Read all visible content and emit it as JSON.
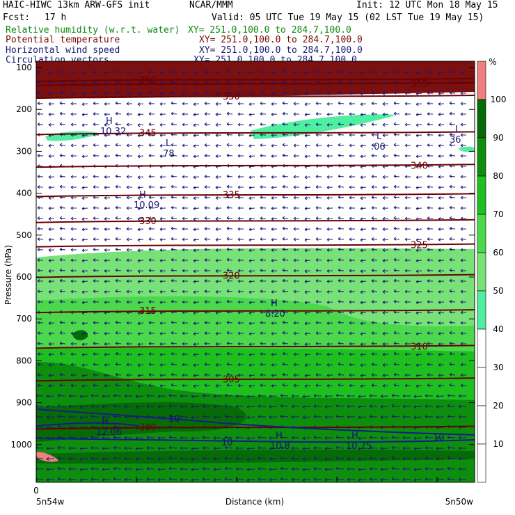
{
  "header": {
    "model": "HAIC-HIWC 13km ARW-GFS init",
    "org": "NCAR/MMM",
    "init": "Init: 12 UTC Mon 18 May 15",
    "fcst_label": "Fcst:",
    "fcst_value": "17 h",
    "valid": "Valid: 05 UTC Tue 19 May 15 (02 LST Tue 19 May 15)"
  },
  "fields": [
    {
      "name": "Relative humidity (w.r.t. water)",
      "xy": "XY= 251.0,100.0 to 284.7,100.0",
      "color": "#0f8a0f"
    },
    {
      "name": "Potential temperature",
      "xy": "XY= 251.0,100.0 to 284.7,100.0",
      "color": "#7a0a0a"
    },
    {
      "name": "Horizontal wind speed",
      "xy": "XY= 251.0,100.0 to 284.7,100.0",
      "color": "#1a1a78"
    },
    {
      "name": "Circulation vectors",
      "xy": "XY= 251.0,100.0 to 284.7,100.0",
      "color": "#1a1a78"
    }
  ],
  "chart_data": {
    "type": "heatmap",
    "ylabel": "Pressure (hPa)",
    "xlabel": "Distance (km)",
    "y_ticks": [
      100,
      200,
      300,
      400,
      500,
      600,
      700,
      800,
      900,
      1000
    ],
    "y_range": [
      85,
      1090
    ],
    "x_ticks_start": "0",
    "x_left_label": "5n54w",
    "x_right_label": "5n50w",
    "colorbar": {
      "unit": "%",
      "levels": [
        10,
        20,
        30,
        40,
        50,
        60,
        70,
        80,
        90,
        100
      ],
      "colors": [
        "#ffffff",
        "#ffffff",
        "#ffffff",
        "#ffffff",
        "#ffffff",
        "#50eea0",
        "#78e278",
        "#4cd84c",
        "#1fbf1f",
        "#0d8f0d",
        "#066b06",
        "#f08080"
      ]
    },
    "theta_contours": [
      {
        "label": "300",
        "p": 958
      },
      {
        "label": "305",
        "p": 843
      },
      {
        "label": "310",
        "p": 765
      },
      {
        "label": "315",
        "p": 680
      },
      {
        "label": "320",
        "p": 596
      },
      {
        "label": "325",
        "p": 523
      },
      {
        "label": "330",
        "p": 465
      },
      {
        "label": "335",
        "p": 403
      },
      {
        "label": "340",
        "p": 333
      },
      {
        "label": "345",
        "p": 255
      },
      {
        "label": "350",
        "p": 168
      },
      {
        "label": "355",
        "p": 138
      },
      {
        "label": "360",
        "p": 128
      }
    ],
    "wind_labels": [
      "10",
      "10",
      "10"
    ],
    "extrema": [
      {
        "type": "H",
        "value": "10.32"
      },
      {
        "type": "L",
        "value": ".78"
      },
      {
        "type": "H",
        "value": "10.09"
      },
      {
        "type": "L",
        "value": ".06"
      },
      {
        "type": "L",
        "value": "36"
      },
      {
        "type": "H",
        "value": "8.20"
      },
      {
        "type": "H",
        "value": "12.06"
      },
      {
        "type": "H",
        "value": "10.8"
      },
      {
        "type": "H",
        "value": "10.75"
      }
    ]
  }
}
